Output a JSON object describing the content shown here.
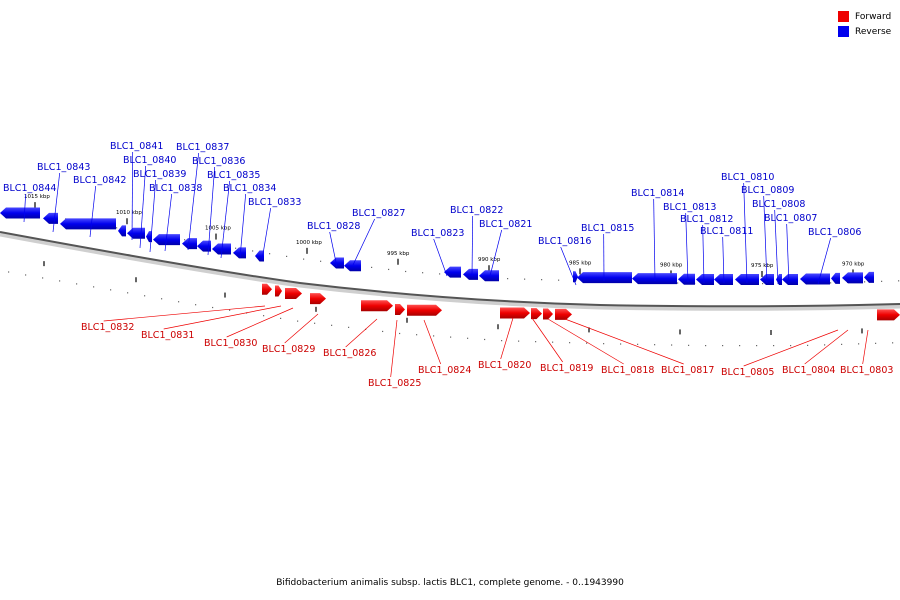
{
  "legend": {
    "forward_label": "Forward",
    "reverse_label": "Reverse",
    "forward_color": "#ee0000",
    "reverse_color": "#0000ee"
  },
  "caption": "Bifidobacterium animalis subsp. lactis BLC1, complete genome. - 0..1943990",
  "ticks": [
    "1015 kbp",
    "1010 kbp",
    "1005 kbp",
    "1000 kbp",
    "995 kbp",
    "990 kbp",
    "985 kbp",
    "980 kbp",
    "975 kbp",
    "970 kbp"
  ],
  "reverse_genes": [
    "BLC1_0844",
    "BLC1_0843",
    "BLC1_0842",
    "BLC1_0841",
    "BLC1_0840",
    "BLC1_0839",
    "BLC1_0838",
    "BLC1_0837",
    "BLC1_0836",
    "BLC1_0835",
    "BLC1_0834",
    "BLC1_0833",
    "BLC1_0828",
    "BLC1_0827",
    "BLC1_0823",
    "BLC1_0822",
    "BLC1_0821",
    "BLC1_0816",
    "BLC1_0815",
    "BLC1_0814",
    "BLC1_0813",
    "BLC1_0812",
    "BLC1_0811",
    "BLC1_0810",
    "BLC1_0809",
    "BLC1_0808",
    "BLC1_0807",
    "BLC1_0806"
  ],
  "forward_genes": [
    "BLC1_0832",
    "BLC1_0831",
    "BLC1_0830",
    "BLC1_0829",
    "BLC1_0826",
    "BLC1_0825",
    "BLC1_0824",
    "BLC1_0820",
    "BLC1_0819",
    "BLC1_0818",
    "BLC1_0817",
    "BLC1_0805",
    "BLC1_0804",
    "BLC1_0803"
  ]
}
